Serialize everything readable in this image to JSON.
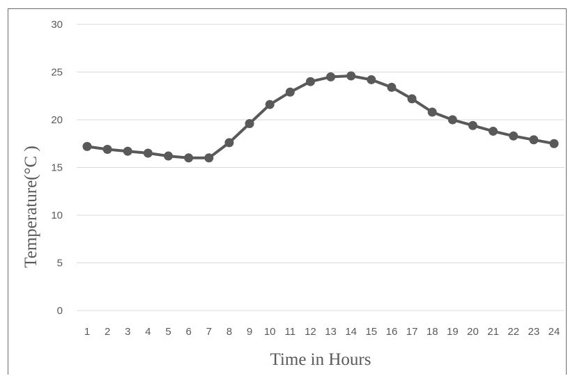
{
  "chart_data": {
    "type": "line",
    "title": "",
    "xlabel": "Time in Hours",
    "ylabel": "Temperature(°C )",
    "x": [
      "1",
      "2",
      "3",
      "4",
      "5",
      "6",
      "7",
      "8",
      "9",
      "10",
      "11",
      "12",
      "13",
      "14",
      "15",
      "16",
      "17",
      "18",
      "19",
      "20",
      "21",
      "22",
      "23",
      "24"
    ],
    "series": [
      {
        "values": [
          17.2,
          16.9,
          16.7,
          16.5,
          16.2,
          16.0,
          16.0,
          17.6,
          19.6,
          21.6,
          22.9,
          24.0,
          24.5,
          24.6,
          24.2,
          23.4,
          22.2,
          20.8,
          20.0,
          19.4,
          18.8,
          18.3,
          17.9,
          17.5
        ],
        "color": "#595959"
      }
    ],
    "ylim": [
      0,
      30
    ],
    "yticks": [
      "0",
      "5",
      "10",
      "15",
      "20",
      "25",
      "30"
    ],
    "grid": true,
    "legend": "none"
  }
}
